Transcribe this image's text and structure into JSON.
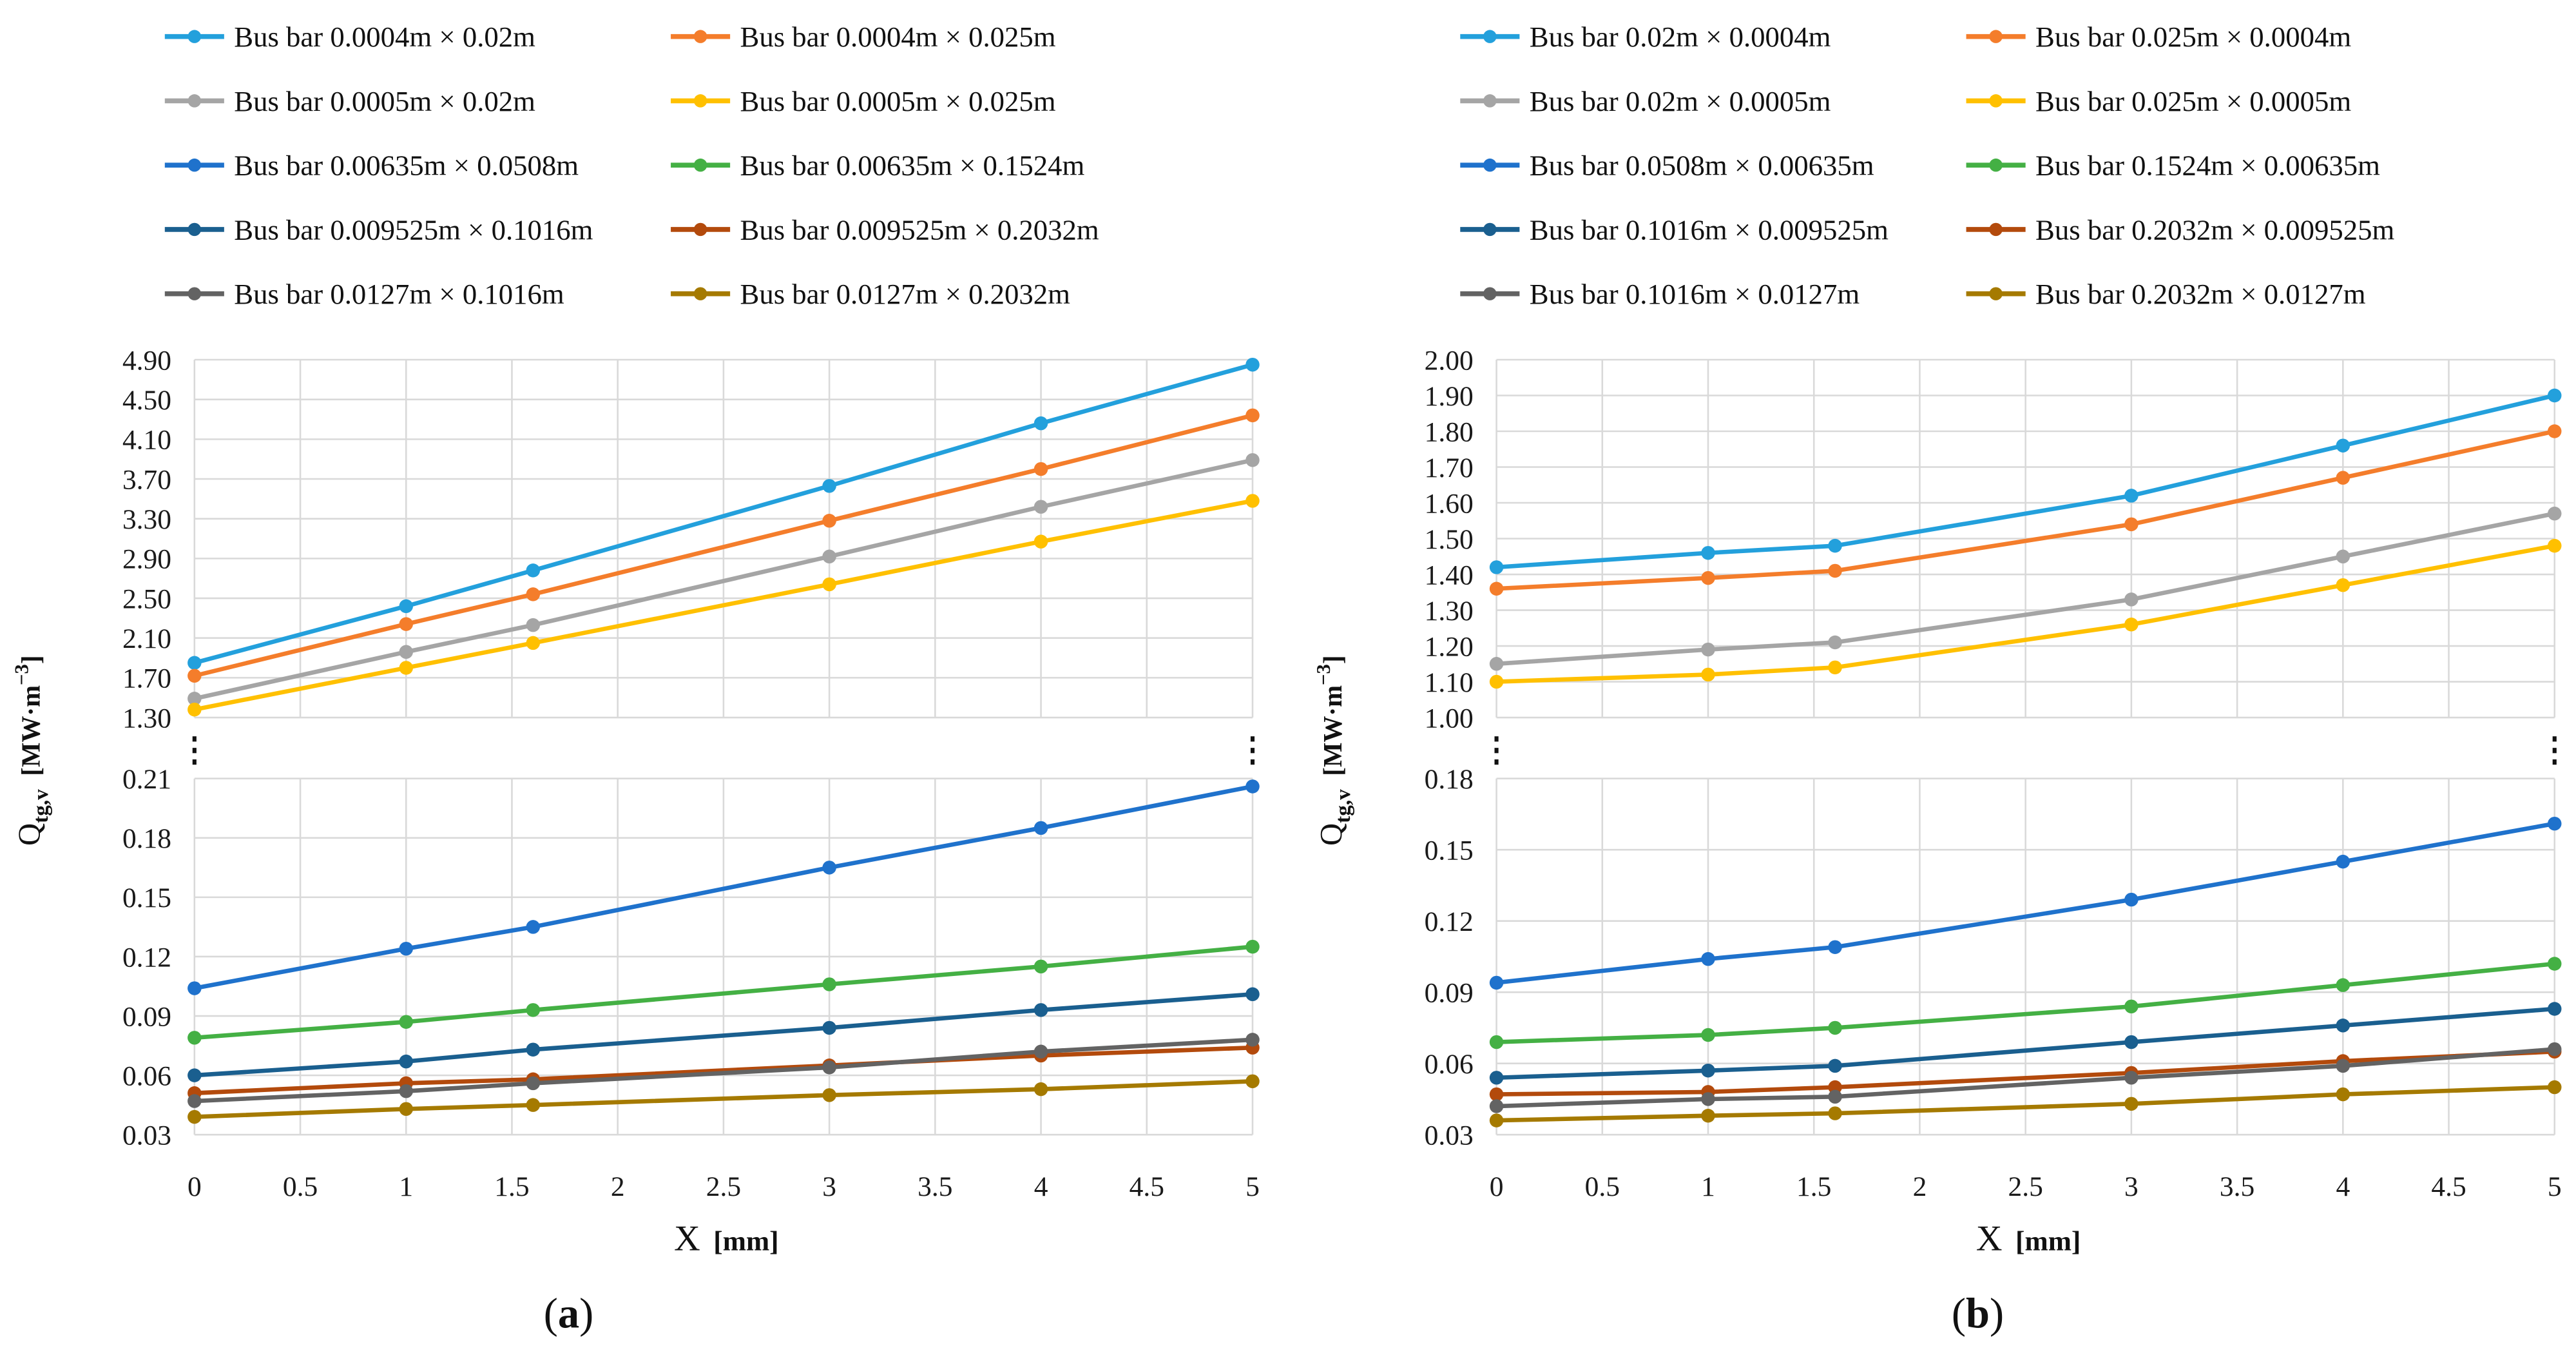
{
  "chart_data": [
    {
      "type": "line",
      "caption": "(a)",
      "caption_bold": "a",
      "xlabel": "X",
      "xlabel_unit": "[mm]",
      "ylabel": {
        "main": "Q",
        "sub": "tg,v",
        "unit": "[MW·m",
        "exp": "−3",
        "close": "]"
      },
      "x": [
        0,
        1,
        1.6,
        3,
        4,
        5
      ],
      "xlim": [
        0,
        5
      ],
      "xticks": [
        "0",
        "0.5",
        "1",
        "1.5",
        "2",
        "2.5",
        "3",
        "3.5",
        "4",
        "4.5",
        "5"
      ],
      "legend_placement": "top",
      "grid": true,
      "panels": [
        {
          "ylim": [
            1.3,
            4.9
          ],
          "yticks": [
            "1.30",
            "1.70",
            "2.10",
            "2.50",
            "2.90",
            "3.30",
            "3.70",
            "4.10",
            "4.50",
            "4.90"
          ],
          "series_idx": [
            0,
            1,
            2,
            3
          ]
        },
        {
          "ylim": [
            0.03,
            0.21
          ],
          "yticks": [
            "0.03",
            "0.06",
            "0.09",
            "0.12",
            "0.15",
            "0.18",
            "0.21"
          ],
          "series_idx": [
            4,
            5,
            6,
            7,
            8,
            9
          ]
        }
      ],
      "series": [
        {
          "name": "Bus bar 0.0004m × 0.02m",
          "color": "#23a0dc",
          "values": [
            1.85,
            2.42,
            2.78,
            3.63,
            4.26,
            4.85
          ]
        },
        {
          "name": "Bus bar 0.0004m × 0.025m",
          "color": "#f47d2b",
          "values": [
            1.72,
            2.24,
            2.54,
            3.28,
            3.8,
            4.34
          ]
        },
        {
          "name": "Bus bar 0.0005m × 0.02m",
          "color": "#a5a5a5",
          "values": [
            1.49,
            1.96,
            2.23,
            2.92,
            3.42,
            3.89
          ]
        },
        {
          "name": "Bus bar 0.0005m × 0.025m",
          "color": "#ffc000",
          "values": [
            1.38,
            1.8,
            2.05,
            2.64,
            3.07,
            3.48
          ]
        },
        {
          "name": "Bus bar 0.00635m × 0.0508m",
          "color": "#1f72cc",
          "values": [
            0.104,
            0.124,
            0.135,
            0.165,
            0.185,
            0.206
          ]
        },
        {
          "name": "Bus bar 0.00635m × 0.1524m",
          "color": "#44b044",
          "values": [
            0.079,
            0.087,
            0.093,
            0.106,
            0.115,
            0.125
          ]
        },
        {
          "name": "Bus bar 0.009525m × 0.1016m",
          "color": "#1a5f8f",
          "values": [
            0.06,
            0.067,
            0.073,
            0.084,
            0.093,
            0.101
          ]
        },
        {
          "name": "Bus bar 0.009525m × 0.2032m",
          "color": "#b34a0c",
          "values": [
            0.051,
            0.056,
            0.058,
            0.065,
            0.07,
            0.074
          ]
        },
        {
          "name": "Bus bar 0.0127m × 0.1016m",
          "color": "#636363",
          "values": [
            0.047,
            0.052,
            0.056,
            0.064,
            0.072,
            0.078
          ]
        },
        {
          "name": "Bus bar 0.0127m × 0.2032m",
          "color": "#a57a00",
          "values": [
            0.039,
            0.043,
            0.045,
            0.05,
            0.053,
            0.057
          ]
        }
      ]
    },
    {
      "type": "line",
      "caption": "(b)",
      "caption_bold": "b",
      "xlabel": "X",
      "xlabel_unit": "[mm]",
      "ylabel": {
        "main": "Q",
        "sub": "tg,v",
        "unit": "[MW·m",
        "exp": "−3",
        "close": "]"
      },
      "x": [
        0,
        1,
        1.6,
        3,
        4,
        5
      ],
      "xlim": [
        0,
        5
      ],
      "xticks": [
        "0",
        "0.5",
        "1",
        "1.5",
        "2",
        "2.5",
        "3",
        "3.5",
        "4",
        "4.5",
        "5"
      ],
      "legend_placement": "top",
      "grid": true,
      "panels": [
        {
          "ylim": [
            1.0,
            2.0
          ],
          "yticks": [
            "1.00",
            "1.10",
            "1.20",
            "1.30",
            "1.40",
            "1.50",
            "1.60",
            "1.70",
            "1.80",
            "1.90",
            "2.00"
          ],
          "series_idx": [
            0,
            1,
            2,
            3
          ]
        },
        {
          "ylim": [
            0.03,
            0.18
          ],
          "yticks": [
            "0.03",
            "0.06",
            "0.09",
            "0.12",
            "0.15",
            "0.18"
          ],
          "series_idx": [
            4,
            5,
            6,
            7,
            8,
            9
          ]
        }
      ],
      "series": [
        {
          "name": "Bus bar 0.02m × 0.0004m",
          "color": "#23a0dc",
          "values": [
            1.42,
            1.46,
            1.48,
            1.62,
            1.76,
            1.9
          ]
        },
        {
          "name": "Bus bar 0.025m × 0.0004m",
          "color": "#f47d2b",
          "values": [
            1.36,
            1.39,
            1.41,
            1.54,
            1.67,
            1.8
          ]
        },
        {
          "name": "Bus bar 0.02m × 0.0005m",
          "color": "#a5a5a5",
          "values": [
            1.15,
            1.19,
            1.21,
            1.33,
            1.45,
            1.57
          ]
        },
        {
          "name": "Bus bar 0.025m × 0.0005m",
          "color": "#ffc000",
          "values": [
            1.1,
            1.12,
            1.14,
            1.26,
            1.37,
            1.48
          ]
        },
        {
          "name": "Bus bar 0.0508m × 0.00635m",
          "color": "#1f72cc",
          "values": [
            0.094,
            0.104,
            0.109,
            0.129,
            0.145,
            0.161
          ]
        },
        {
          "name": "Bus bar 0.1524m × 0.00635m",
          "color": "#44b044",
          "values": [
            0.069,
            0.072,
            0.075,
            0.084,
            0.093,
            0.102
          ]
        },
        {
          "name": "Bus bar 0.1016m × 0.009525m",
          "color": "#1a5f8f",
          "values": [
            0.054,
            0.057,
            0.059,
            0.069,
            0.076,
            0.083
          ]
        },
        {
          "name": "Bus bar 0.2032m × 0.009525m",
          "color": "#b34a0c",
          "values": [
            0.047,
            0.048,
            0.05,
            0.056,
            0.061,
            0.065
          ]
        },
        {
          "name": "Bus bar 0.1016m × 0.0127m",
          "color": "#636363",
          "values": [
            0.042,
            0.045,
            0.046,
            0.054,
            0.059,
            0.066
          ]
        },
        {
          "name": "Bus bar 0.2032m × 0.0127m",
          "color": "#a57a00",
          "values": [
            0.036,
            0.038,
            0.039,
            0.043,
            0.047,
            0.05
          ]
        }
      ]
    }
  ]
}
